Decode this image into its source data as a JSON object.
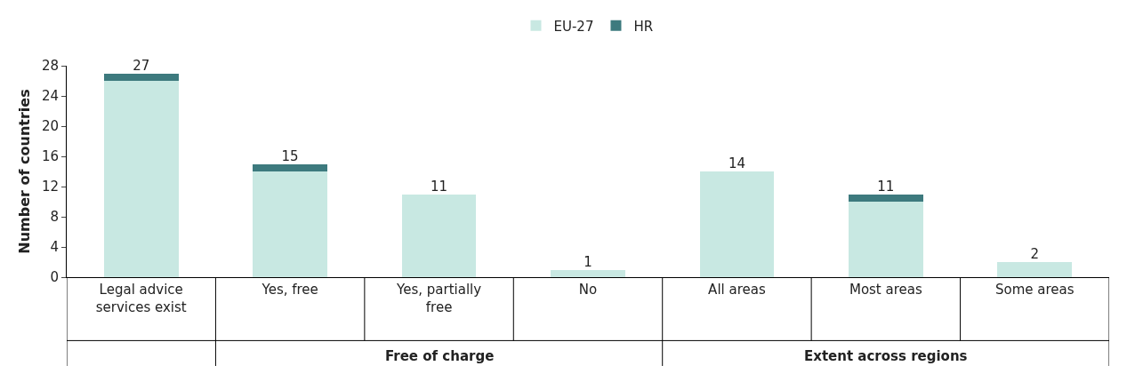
{
  "chart_data": {
    "type": "bar",
    "stacked": true,
    "ylabel": "Number of countries",
    "categories": [
      "Legal advice services exist",
      "Yes, free",
      "Yes, partially free",
      "No",
      "All areas",
      "Most areas",
      "Some areas"
    ],
    "series": [
      {
        "name": "EU-27",
        "color": "#c8e8e2",
        "values": [
          26,
          14,
          11,
          1,
          14,
          10,
          2
        ]
      },
      {
        "name": "HR",
        "color": "#3d7a7e",
        "values": [
          1,
          1,
          0,
          0,
          0,
          1,
          0
        ]
      }
    ],
    "totals": [
      "27",
      "15",
      "11",
      "1",
      "14",
      "11",
      "2"
    ],
    "ylim": [
      0,
      28
    ],
    "yticks": [
      0,
      4,
      8,
      12,
      16,
      20,
      24,
      28
    ],
    "annotations": [
      "Free of charge",
      "Extent across regions"
    ],
    "legend": "top"
  }
}
